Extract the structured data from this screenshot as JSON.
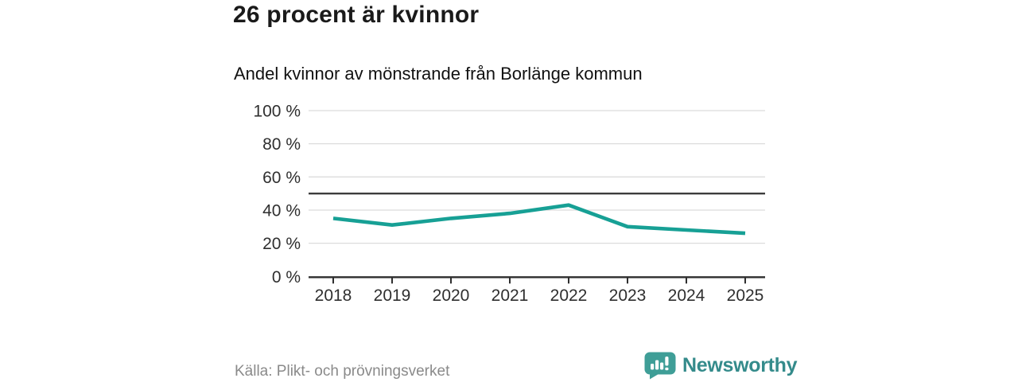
{
  "header": {
    "title": "26 procent är kvinnor",
    "subtitle": "Andel kvinnor av mönstrande från Borlänge kommun"
  },
  "chart_data": {
    "type": "line",
    "title": "Andel kvinnor av mönstrande från Borlänge kommun",
    "categories": [
      "2018",
      "2019",
      "2020",
      "2021",
      "2022",
      "2023",
      "2024",
      "2025"
    ],
    "values": [
      35,
      31,
      35,
      38,
      43,
      30,
      28,
      26
    ],
    "unit": "%",
    "ylim": [
      0,
      100
    ],
    "ytick_values": [
      0,
      20,
      40,
      60,
      80,
      100
    ],
    "ytick_labels": [
      "0 %",
      "20 %",
      "40 %",
      "60 %",
      "80 %",
      "100 %"
    ],
    "reference_line": 50,
    "grid": true,
    "legend": "none",
    "line_color": "#17a095",
    "reference_line_color": "#3d3d3d",
    "grid_color": "#dcdcdc",
    "axis_color": "#2e2e2e",
    "tick_label_color": "#2f2f2f"
  },
  "footer": {
    "source": "Källa: Plikt- och prövningsverket",
    "brand": "Newsworthy",
    "brand_color": "#348b8b",
    "logo_icon_color": "#3f9e97",
    "logo_icon": "bar-chart-speech-bubble"
  }
}
